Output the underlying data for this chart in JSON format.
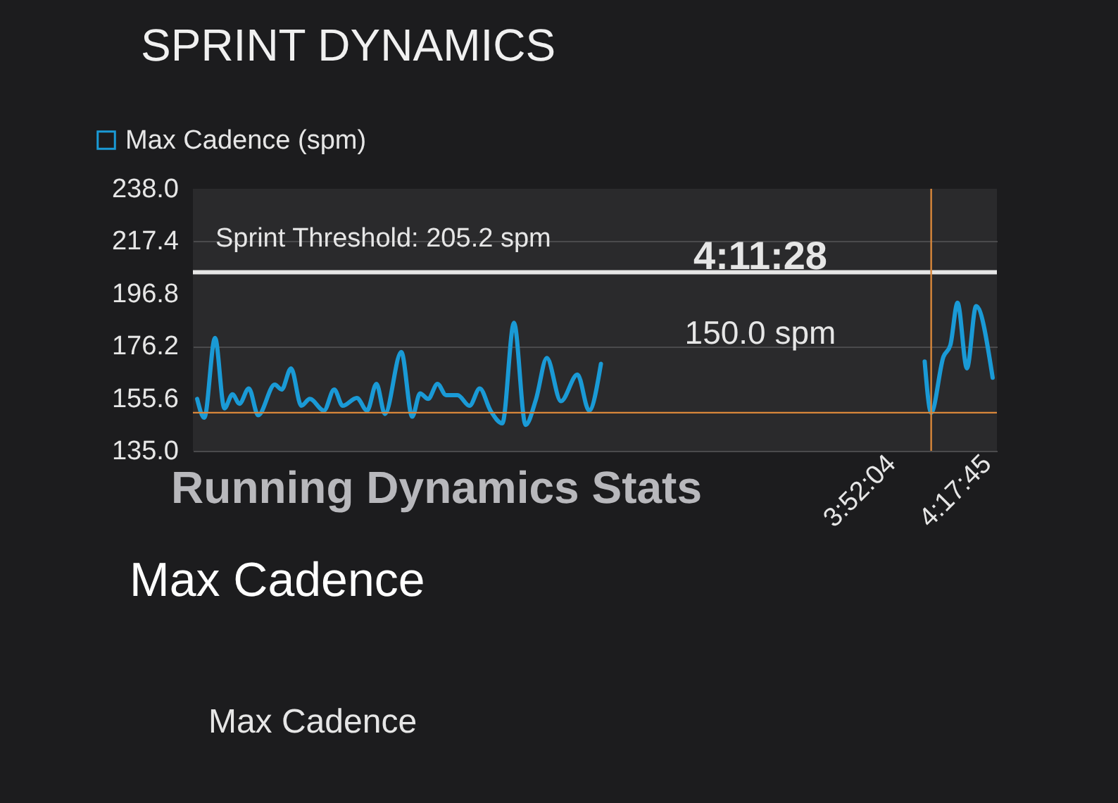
{
  "chart_data": {
    "type": "line",
    "title": "SPRINT DYNAMICS",
    "x": [
      0.908,
      0.94,
      0.988,
      1.03,
      1.066,
      1.097,
      1.139,
      1.181,
      1.255,
      1.286,
      1.328,
      1.374,
      1.412,
      1.475,
      1.521,
      1.559,
      1.622,
      1.668,
      1.71,
      1.748,
      1.821,
      1.87,
      1.905,
      1.941,
      1.983,
      2.021,
      2.073,
      2.126,
      2.172,
      2.22,
      2.273,
      2.325,
      2.377,
      2.424,
      2.472,
      2.535,
      2.609,
      2.661,
      2.714,
      2.75,
      4.15,
      4.162,
      4.191,
      4.246,
      4.277,
      4.309,
      4.351,
      4.392,
      4.466
    ],
    "series": [
      {
        "name": "Max Cadence (spm)",
        "color": "#1a9ad6",
        "values": [
          155.4,
          148.0,
          179.4,
          151.7,
          157.2,
          153.5,
          159.5,
          149.0,
          161.0,
          159.1,
          167.4,
          152.7,
          155.4,
          150.8,
          159.1,
          152.7,
          155.8,
          150.8,
          161.3,
          149.5,
          173.8,
          148.4,
          157.6,
          155.4,
          161.3,
          156.9,
          156.9,
          152.7,
          159.5,
          150.8,
          145.8,
          185.3,
          145.2,
          155.4,
          171.5,
          154.5,
          165.0,
          150.8,
          169.2,
          null,
          null,
          170.1,
          150.0,
          172.0,
          176.6,
          193.2,
          167.4,
          191.9,
          163.7
        ]
      }
    ],
    "xlim": [
      0.889,
      4.485
    ],
    "xticks": [
      {
        "value": 3.8678,
        "label": "3:52:04"
      },
      {
        "value": 4.2958,
        "label": "4:17:45"
      }
    ],
    "ylim": [
      135.0,
      238.0
    ],
    "yticks": [
      {
        "value": 135.0,
        "label": "135.0"
      },
      {
        "value": 155.6,
        "label": "155.6"
      },
      {
        "value": 176.2,
        "label": "176.2"
      },
      {
        "value": 196.8,
        "label": "196.8"
      },
      {
        "value": 217.4,
        "label": "217.4"
      },
      {
        "value": 238.0,
        "label": "238.0"
      }
    ],
    "grid": "y",
    "legend": "top left",
    "marker": "none",
    "line_style": "solid",
    "ref_lines": [
      {
        "axis": "y",
        "value": 205.2,
        "label": "Sprint Threshold: 205.2 spm",
        "color": "#e6e6e6"
      },
      {
        "axis": "x",
        "value": 4.191,
        "color": "#d9873a"
      },
      {
        "axis": "y",
        "value": 150.0,
        "color": "#d9873a"
      }
    ],
    "annotations": [
      "Running Dynamics Stats",
      "Max Cadence",
      "Max Cadence",
      "4:11:28",
      "150.0 spm"
    ]
  }
}
